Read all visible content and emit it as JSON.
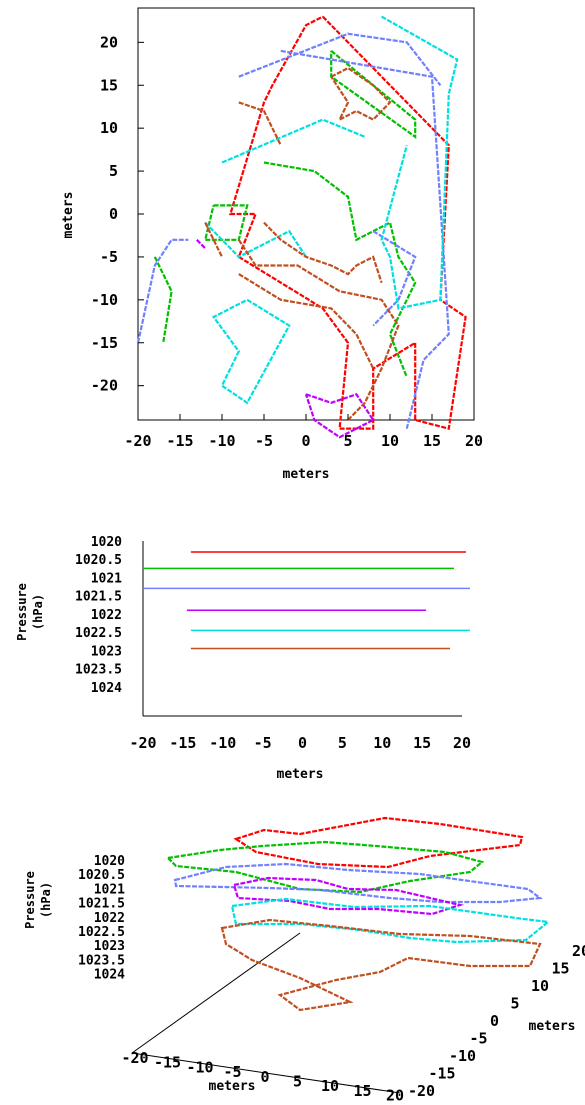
{
  "chart_data": [
    {
      "type": "scatter",
      "xlabel": "meters",
      "ylabel": "meters",
      "xlim": [
        -20,
        20
      ],
      "ylim": [
        -24,
        24
      ],
      "x_ticks": [
        "-20",
        "-15",
        "-10",
        "-5",
        "0",
        "5",
        "10",
        "15",
        "20"
      ],
      "y_ticks": [
        "20",
        "15",
        "10",
        "5",
        "0",
        "-5",
        "-10",
        "-15",
        "-20"
      ],
      "x_tick_values": [
        -20,
        -15,
        -10,
        -5,
        0,
        5,
        10,
        15,
        20
      ],
      "y_tick_values": [
        20,
        15,
        10,
        5,
        0,
        -5,
        -10,
        -15,
        -20
      ],
      "grid": false,
      "series": [
        {
          "color": "#ff0000",
          "values": [
            [
              2,
              23
            ],
            [
              17,
              8
            ],
            [
              16,
              -10
            ],
            [
              19,
              -12
            ],
            [
              17,
              -25
            ],
            [
              13,
              -24
            ],
            [
              13,
              -15
            ],
            [
              8,
              -18
            ],
            [
              8,
              -25
            ],
            [
              4,
              -25
            ],
            [
              5,
              -15
            ],
            [
              2,
              -11
            ],
            [
              -8,
              -5
            ],
            [
              -6,
              0
            ],
            [
              -9,
              0
            ],
            [
              -5,
              13
            ],
            [
              -4,
              15
            ],
            [
              0,
              22
            ],
            [
              2,
              23
            ]
          ]
        },
        {
          "color": "#00c000",
          "values": [
            [
              3,
              19
            ],
            [
              13,
              11
            ],
            [
              13,
              9
            ],
            [
              3,
              16
            ],
            [
              3,
              19
            ]
          ]
        },
        {
          "color": "#00c000",
          "values": [
            [
              -11,
              1
            ],
            [
              -7,
              1
            ],
            [
              -8,
              -3
            ],
            [
              -12,
              -3
            ],
            [
              -11,
              1
            ]
          ]
        },
        {
          "color": "#00c000",
          "values": [
            [
              -5,
              6
            ],
            [
              1,
              5
            ],
            [
              5,
              2
            ],
            [
              6,
              -3
            ],
            [
              10,
              -1
            ],
            [
              11,
              -5
            ],
            [
              13,
              -8
            ],
            [
              10,
              -14
            ],
            [
              12,
              -19
            ]
          ]
        },
        {
          "color": "#00c000",
          "values": [
            [
              -18,
              -5
            ],
            [
              -16,
              -9
            ],
            [
              -17,
              -15
            ]
          ]
        },
        {
          "color": "#7080ff",
          "values": [
            [
              -3,
              19
            ],
            [
              15,
              16
            ],
            [
              17,
              -14
            ],
            [
              14,
              -17
            ],
            [
              12,
              -25
            ]
          ]
        },
        {
          "color": "#7080ff",
          "values": [
            [
              -8,
              16
            ],
            [
              5,
              21
            ],
            [
              12,
              20
            ],
            [
              16,
              15
            ]
          ]
        },
        {
          "color": "#7080ff",
          "values": [
            [
              -20,
              -15
            ],
            [
              -18,
              -6
            ],
            [
              -16,
              -3
            ],
            [
              -14,
              -3
            ]
          ]
        },
        {
          "color": "#7080ff",
          "values": [
            [
              8,
              -2
            ],
            [
              13,
              -5
            ],
            [
              11,
              -10
            ],
            [
              8,
              -13
            ]
          ]
        },
        {
          "color": "#00e0e0",
          "values": [
            [
              9,
              23
            ],
            [
              18,
              18
            ],
            [
              17,
              14
            ],
            [
              16,
              -10
            ],
            [
              11,
              -11
            ],
            [
              10,
              -5
            ],
            [
              9,
              -3
            ],
            [
              12,
              8
            ]
          ]
        },
        {
          "color": "#00e0e0",
          "values": [
            [
              -12,
              -1
            ],
            [
              -8,
              -5
            ],
            [
              -2,
              -2
            ],
            [
              0,
              -5
            ]
          ]
        },
        {
          "color": "#00e0e0",
          "values": [
            [
              -7,
              -10
            ],
            [
              -2,
              -13
            ],
            [
              -7,
              -22
            ],
            [
              -10,
              -20
            ],
            [
              -8,
              -16
            ],
            [
              -11,
              -12
            ],
            [
              -7,
              -10
            ]
          ]
        },
        {
          "color": "#00e0e0",
          "values": [
            [
              -10,
              6
            ],
            [
              2,
              11
            ],
            [
              7,
              9
            ]
          ]
        },
        {
          "color": "#c000ff",
          "values": [
            [
              0,
              -21
            ],
            [
              3,
              -22
            ],
            [
              6,
              -21
            ],
            [
              8,
              -24
            ],
            [
              4,
              -26
            ],
            [
              1,
              -24
            ],
            [
              0,
              -21
            ]
          ]
        },
        {
          "color": "#c000ff",
          "values": [
            [
              -13,
              -3
            ],
            [
              -12,
              -4
            ]
          ]
        },
        {
          "color": "#c05020",
          "values": [
            [
              -8,
              -3
            ],
            [
              -6,
              -6
            ],
            [
              -1,
              -6
            ],
            [
              4,
              -9
            ],
            [
              9,
              -10
            ],
            [
              11,
              -13
            ],
            [
              9,
              -18
            ],
            [
              7,
              -22
            ],
            [
              5,
              -24
            ]
          ]
        },
        {
          "color": "#c05020",
          "values": [
            [
              -8,
              -7
            ],
            [
              -3,
              -10
            ],
            [
              3,
              -11
            ],
            [
              6,
              -14
            ],
            [
              8,
              -18
            ]
          ]
        },
        {
          "color": "#c05020",
          "values": [
            [
              -5,
              -1
            ],
            [
              -3,
              -3
            ],
            [
              0,
              -5
            ],
            [
              3,
              -6
            ],
            [
              5,
              -7
            ],
            [
              6,
              -6
            ],
            [
              8,
              -5
            ],
            [
              9,
              -8
            ]
          ]
        },
        {
          "color": "#c05020",
          "values": [
            [
              3,
              16
            ],
            [
              5,
              17
            ],
            [
              8,
              15
            ],
            [
              10,
              13
            ],
            [
              8,
              11
            ],
            [
              6,
              12
            ],
            [
              4,
              11
            ],
            [
              5,
              13
            ],
            [
              3,
              16
            ]
          ]
        },
        {
          "color": "#c05020",
          "values": [
            [
              -12,
              -1
            ],
            [
              -11,
              -3
            ],
            [
              -10,
              -5
            ]
          ]
        },
        {
          "color": "#c05020",
          "values": [
            [
              -8,
              13
            ],
            [
              -5,
              12
            ],
            [
              -4,
              10
            ],
            [
              -3,
              8
            ]
          ]
        }
      ]
    },
    {
      "type": "line",
      "xlabel": "meters",
      "ylabel": "Pressure\n(hPa)",
      "ylabel_lines": [
        "Pressure",
        "(hPa)"
      ],
      "xlim": [
        -20,
        20
      ],
      "ylim": [
        1020,
        1024.8
      ],
      "y_reversed": true,
      "x_ticks": [
        "-20",
        "-15",
        "-10",
        "-5",
        "0",
        "5",
        "10",
        "15",
        "20"
      ],
      "y_ticks": [
        "1020",
        "1020.5",
        "1021",
        "1021.5",
        "1022",
        "1022.5",
        "1023",
        "1023.5",
        "1024"
      ],
      "x_tick_values": [
        -20,
        -15,
        -10,
        -5,
        0,
        5,
        10,
        15,
        20
      ],
      "y_tick_values": [
        1020,
        1020.5,
        1021,
        1021.5,
        1022,
        1022.5,
        1023,
        1023.5,
        1024
      ],
      "grid": false,
      "series": [
        {
          "color": "#ff0000",
          "y": 1020.3,
          "x": [
            -14,
            20.5
          ]
        },
        {
          "color": "#00c000",
          "y": 1020.75,
          "x": [
            -20,
            19
          ]
        },
        {
          "color": "#7080ff",
          "y": 1021.3,
          "x": [
            -20,
            21
          ]
        },
        {
          "color": "#c000ff",
          "y": 1021.9,
          "x": [
            -14.5,
            15.5
          ]
        },
        {
          "color": "#00e0e0",
          "y": 1022.45,
          "x": [
            -14,
            21
          ]
        },
        {
          "color": "#c05020",
          "y": 1022.95,
          "x": [
            -14,
            18.5
          ]
        }
      ]
    },
    {
      "type": "scatter",
      "projection": "3d",
      "xlabel": "meters",
      "ylabel": "meters",
      "zlabel": "Pressure\n(hPa)",
      "zlabel_lines": [
        "Pressure",
        "(hPa)"
      ],
      "x_ticks": [
        "-20",
        "-15",
        "-10",
        "-5",
        "0",
        "5",
        "10",
        "15",
        "20"
      ],
      "y_ticks": [
        "-20",
        "-15",
        "-10",
        "-5",
        "0",
        "5",
        "10",
        "15",
        "20"
      ],
      "z_ticks": [
        "1020",
        "1020.5",
        "1021",
        "1021.5",
        "1022",
        "1022.5",
        "1023",
        "1023.5",
        "1024"
      ],
      "grid": false
    }
  ]
}
